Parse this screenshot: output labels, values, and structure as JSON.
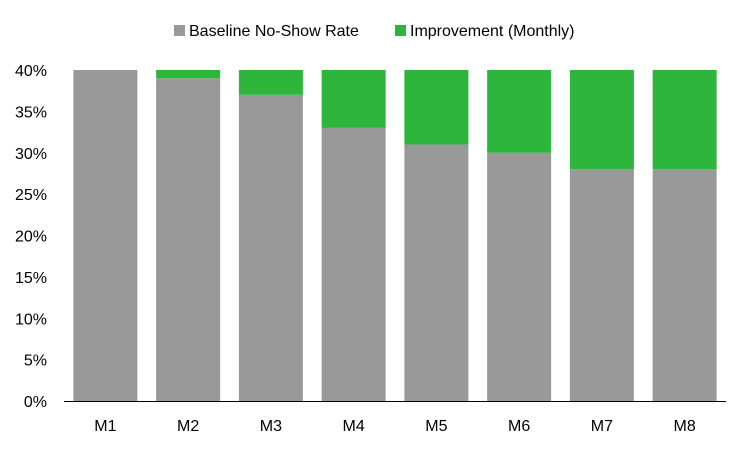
{
  "chart_data": {
    "type": "bar",
    "stacked": true,
    "categories": [
      "M1",
      "M2",
      "M3",
      "M4",
      "M5",
      "M6",
      "M7",
      "M8"
    ],
    "series": [
      {
        "name": "Baseline No-Show Rate",
        "color": "#999999",
        "values": [
          40,
          39,
          37,
          33,
          31,
          30,
          28,
          28
        ]
      },
      {
        "name": "Improvement (Monthly)",
        "color": "#2db53c",
        "values": [
          0,
          1,
          3,
          7,
          9,
          10,
          12,
          12
        ]
      }
    ],
    "ylim": [
      0,
      40
    ],
    "yticks": [
      "0%",
      "5%",
      "10%",
      "15%",
      "20%",
      "25%",
      "30%",
      "35%",
      "40%"
    ],
    "ytick_values": [
      0,
      5,
      10,
      15,
      20,
      25,
      30,
      35,
      40
    ],
    "legend_position": "top-center",
    "grid": false
  }
}
